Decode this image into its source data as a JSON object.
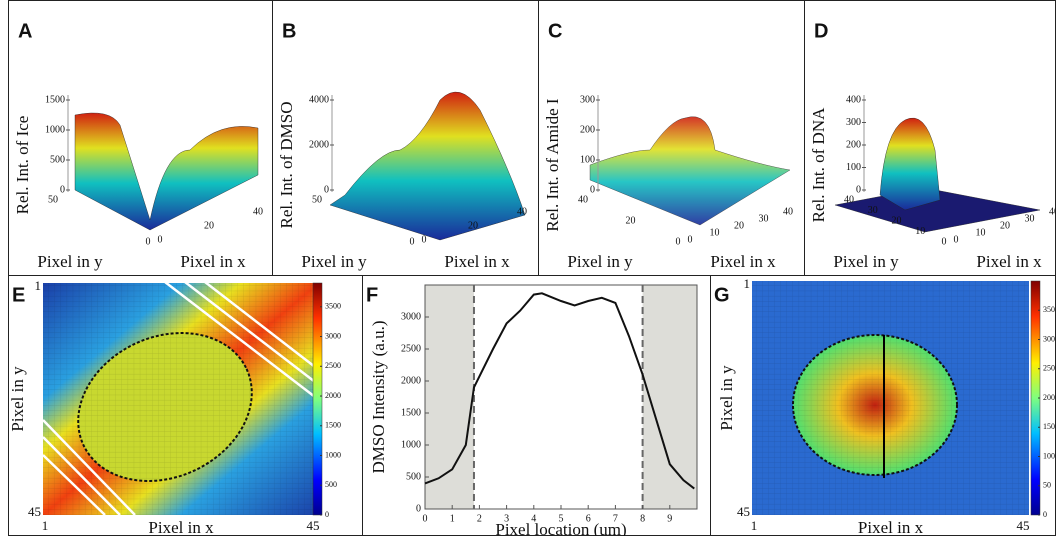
{
  "chart_data": [
    {
      "type": "surface",
      "panel_label": "A",
      "zlabel": "Rel. Int. of Ice",
      "xlabel": "Pixel in x",
      "ylabel": "Pixel in y",
      "zticks": [
        0,
        500,
        1000,
        1500
      ],
      "xticks": [
        0,
        20,
        40
      ],
      "yticks": [
        0,
        50
      ]
    },
    {
      "type": "surface",
      "panel_label": "B",
      "zlabel": "Rel. Int. of DMSO",
      "xlabel": "Pixel in x",
      "ylabel": "Pixel in y",
      "zticks": [
        0,
        2000,
        4000
      ],
      "xticks": [
        0,
        20,
        40
      ],
      "yticks": [
        0,
        50
      ]
    },
    {
      "type": "surface",
      "panel_label": "C",
      "zlabel": "Rel. Int. of Amide I",
      "xlabel": "Pixel in x",
      "ylabel": "Pixel in y",
      "zticks": [
        0,
        100,
        200,
        300
      ],
      "xticks": [
        0,
        10,
        20,
        30,
        40
      ],
      "yticks": [
        0,
        20,
        40
      ]
    },
    {
      "type": "surface",
      "panel_label": "D",
      "zlabel": "Rel. Int. of DNA",
      "xlabel": "Pixel in x",
      "ylabel": "Pixel in y",
      "zticks": [
        0,
        100,
        200,
        300,
        400
      ],
      "xticks": [
        0,
        10,
        20,
        30,
        40
      ],
      "yticks": [
        0,
        10,
        20,
        30,
        40
      ]
    },
    {
      "type": "heatmap",
      "panel_label": "E",
      "xlabel": "Pixel in x",
      "ylabel": "Pixel in y",
      "xticks": [
        1,
        45
      ],
      "yticks": [
        1,
        45
      ],
      "clim": [
        0,
        3900
      ],
      "cticks": [
        0,
        500,
        1000,
        1500,
        2000,
        2500,
        3000,
        3500
      ]
    },
    {
      "type": "line",
      "panel_label": "F",
      "xlabel": "Pixel location (um)",
      "ylabel": "DMSO Intensity (a.u.)",
      "color": "#111111",
      "x": [
        0,
        0.5,
        1,
        1.5,
        1.8,
        2.5,
        3,
        3.5,
        4,
        4.3,
        5,
        5.5,
        6,
        6.5,
        7,
        7.5,
        8,
        8.5,
        9,
        9.5,
        9.9
      ],
      "values": [
        400,
        480,
        620,
        1000,
        1900,
        2500,
        2900,
        3100,
        3350,
        3370,
        3250,
        3180,
        3250,
        3300,
        3220,
        2700,
        2100,
        1400,
        700,
        450,
        320
      ],
      "xlim": [
        0,
        10
      ],
      "ylim": [
        0,
        3500
      ],
      "xticks": [
        0,
        1,
        2,
        3,
        4,
        5,
        6,
        7,
        8,
        9
      ],
      "yticks": [
        0,
        500,
        1000,
        1500,
        2000,
        2500,
        3000
      ],
      "vlines": [
        1.8,
        8.0
      ]
    },
    {
      "type": "heatmap",
      "panel_label": "G",
      "xlabel": "Pixel in x",
      "ylabel": "Pixel in y",
      "xticks": [
        1,
        45
      ],
      "yticks": [
        1,
        45
      ],
      "clim": [
        0,
        400
      ],
      "cticks": [
        0,
        50,
        100,
        150,
        200,
        250,
        300,
        350
      ]
    }
  ]
}
